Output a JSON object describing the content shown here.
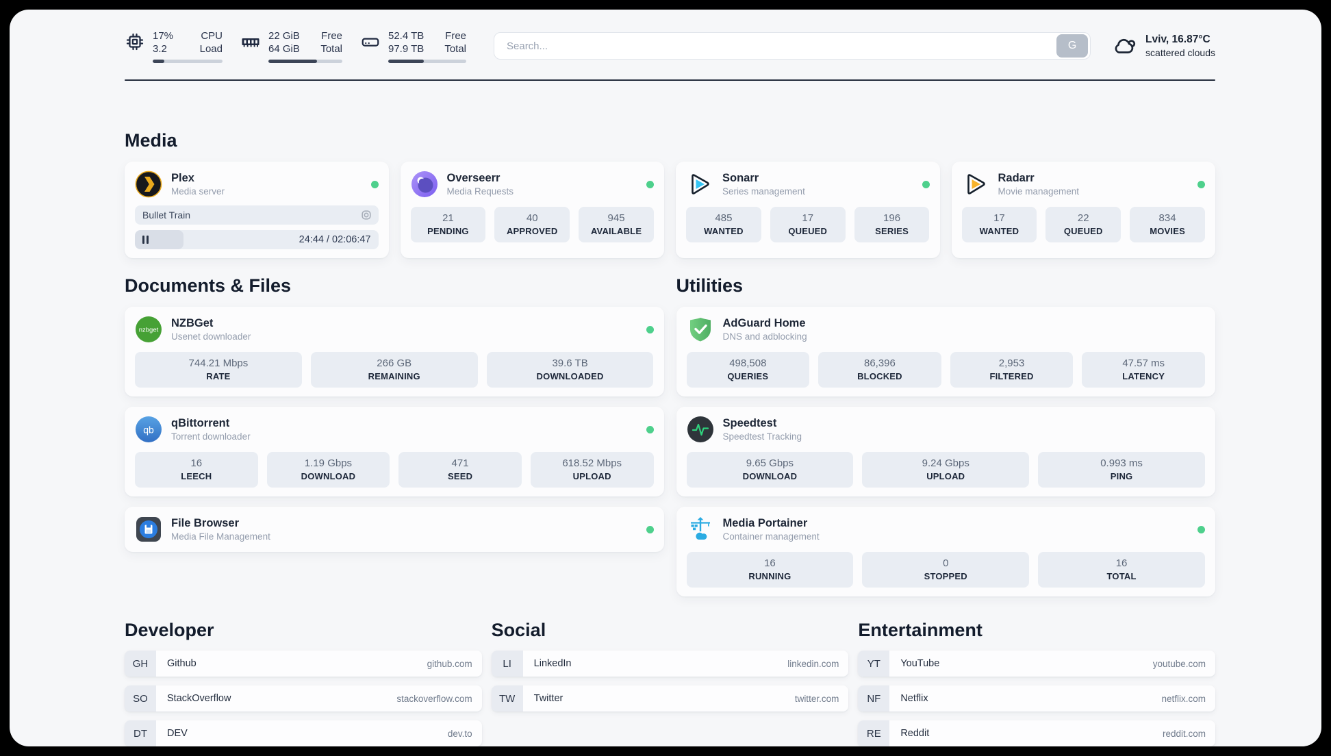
{
  "topbar": {
    "cpu": {
      "percent": "17%",
      "load": "3.2",
      "label_top": "CPU",
      "label_bottom": "Load",
      "progress_pct": 17
    },
    "memory": {
      "free": "22 GiB",
      "total": "64 GiB",
      "label_top": "Free",
      "label_bottom": "Total",
      "progress_pct": 66
    },
    "storage": {
      "free": "52.4 TB",
      "total": "97.9 TB",
      "label_top": "Free",
      "label_bottom": "Total",
      "progress_pct": 46
    },
    "search": {
      "placeholder": "Search...",
      "button_label": "G"
    },
    "weather": {
      "location_temp": "Lviv, 16.87°C",
      "condition": "scattered clouds"
    }
  },
  "media": {
    "title": "Media",
    "plex": {
      "name": "Plex",
      "subtitle": "Media server",
      "now_playing": "Bullet Train",
      "time": "24:44 / 02:06:47",
      "progress_pct": 20
    },
    "overseerr": {
      "name": "Overseerr",
      "subtitle": "Media Requests",
      "stats": [
        {
          "value": "21",
          "label": "PENDING"
        },
        {
          "value": "40",
          "label": "APPROVED"
        },
        {
          "value": "945",
          "label": "AVAILABLE"
        }
      ]
    },
    "sonarr": {
      "name": "Sonarr",
      "subtitle": "Series management",
      "stats": [
        {
          "value": "485",
          "label": "WANTED"
        },
        {
          "value": "17",
          "label": "QUEUED"
        },
        {
          "value": "196",
          "label": "SERIES"
        }
      ]
    },
    "radarr": {
      "name": "Radarr",
      "subtitle": "Movie management",
      "stats": [
        {
          "value": "17",
          "label": "WANTED"
        },
        {
          "value": "22",
          "label": "QUEUED"
        },
        {
          "value": "834",
          "label": "MOVIES"
        }
      ]
    }
  },
  "documents": {
    "title": "Documents & Files",
    "nzbget": {
      "name": "NZBGet",
      "subtitle": "Usenet downloader",
      "stats": [
        {
          "value": "744.21 Mbps",
          "label": "RATE"
        },
        {
          "value": "266 GB",
          "label": "REMAINING"
        },
        {
          "value": "39.6 TB",
          "label": "DOWNLOADED"
        }
      ]
    },
    "qbittorrent": {
      "name": "qBittorrent",
      "subtitle": "Torrent downloader",
      "stats": [
        {
          "value": "16",
          "label": "LEECH"
        },
        {
          "value": "1.19 Gbps",
          "label": "DOWNLOAD"
        },
        {
          "value": "471",
          "label": "SEED"
        },
        {
          "value": "618.52 Mbps",
          "label": "UPLOAD"
        }
      ]
    },
    "filebrowser": {
      "name": "File Browser",
      "subtitle": "Media File Management"
    }
  },
  "utilities": {
    "title": "Utilities",
    "adguard": {
      "name": "AdGuard Home",
      "subtitle": "DNS and adblocking",
      "stats": [
        {
          "value": "498,508",
          "label": "QUERIES"
        },
        {
          "value": "86,396",
          "label": "BLOCKED"
        },
        {
          "value": "2,953",
          "label": "FILTERED"
        },
        {
          "value": "47.57 ms",
          "label": "LATENCY"
        }
      ]
    },
    "speedtest": {
      "name": "Speedtest",
      "subtitle": "Speedtest Tracking",
      "stats": [
        {
          "value": "9.65 Gbps",
          "label": "DOWNLOAD"
        },
        {
          "value": "9.24 Gbps",
          "label": "UPLOAD"
        },
        {
          "value": "0.993 ms",
          "label": "PING"
        }
      ]
    },
    "portainer": {
      "name": "Media Portainer",
      "subtitle": "Container management",
      "stats": [
        {
          "value": "16",
          "label": "RUNNING"
        },
        {
          "value": "0",
          "label": "STOPPED"
        },
        {
          "value": "16",
          "label": "TOTAL"
        }
      ]
    }
  },
  "bookmarks": {
    "developer": {
      "title": "Developer",
      "links": [
        {
          "abbr": "GH",
          "name": "Github",
          "url": "github.com"
        },
        {
          "abbr": "SO",
          "name": "StackOverflow",
          "url": "stackoverflow.com"
        },
        {
          "abbr": "DT",
          "name": "DEV",
          "url": "dev.to"
        }
      ]
    },
    "social": {
      "title": "Social",
      "links": [
        {
          "abbr": "LI",
          "name": "LinkedIn",
          "url": "linkedin.com"
        },
        {
          "abbr": "TW",
          "name": "Twitter",
          "url": "twitter.com"
        }
      ]
    },
    "entertainment": {
      "title": "Entertainment",
      "links": [
        {
          "abbr": "YT",
          "name": "YouTube",
          "url": "youtube.com"
        },
        {
          "abbr": "NF",
          "name": "Netflix",
          "url": "netflix.com"
        },
        {
          "abbr": "RE",
          "name": "Reddit",
          "url": "reddit.com"
        }
      ]
    }
  },
  "colors": {
    "status_online": "#4ed08c",
    "progress_fill": "#3c4557",
    "accent_dark": "#252e3e"
  }
}
